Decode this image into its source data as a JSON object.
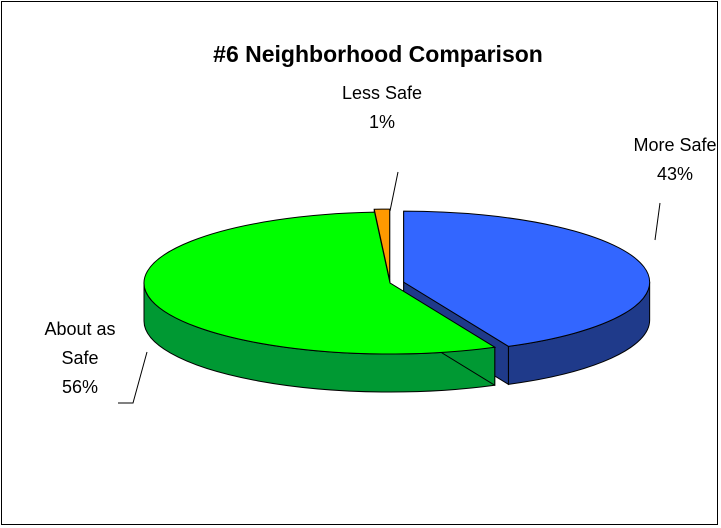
{
  "chart_data": {
    "type": "pie",
    "title": "#6 Neighborhood Comparison",
    "slices": [
      {
        "label": "More Safe",
        "percent_label": "43%",
        "value": 43,
        "color": "#3366FF",
        "side_color": "#1F3A8A"
      },
      {
        "label": "About as Safe",
        "label_lines": [
          "About as",
          "Safe"
        ],
        "percent_label": "56%",
        "value": 56,
        "color": "#00FF00",
        "side_color": "#009933"
      },
      {
        "label": "Less Safe",
        "percent_label": "1%",
        "value": 1,
        "color": "#FF9900",
        "side_color": "#CC6600"
      }
    ],
    "three_d": true,
    "legend": "none",
    "slice_outline_color": "#000000"
  }
}
